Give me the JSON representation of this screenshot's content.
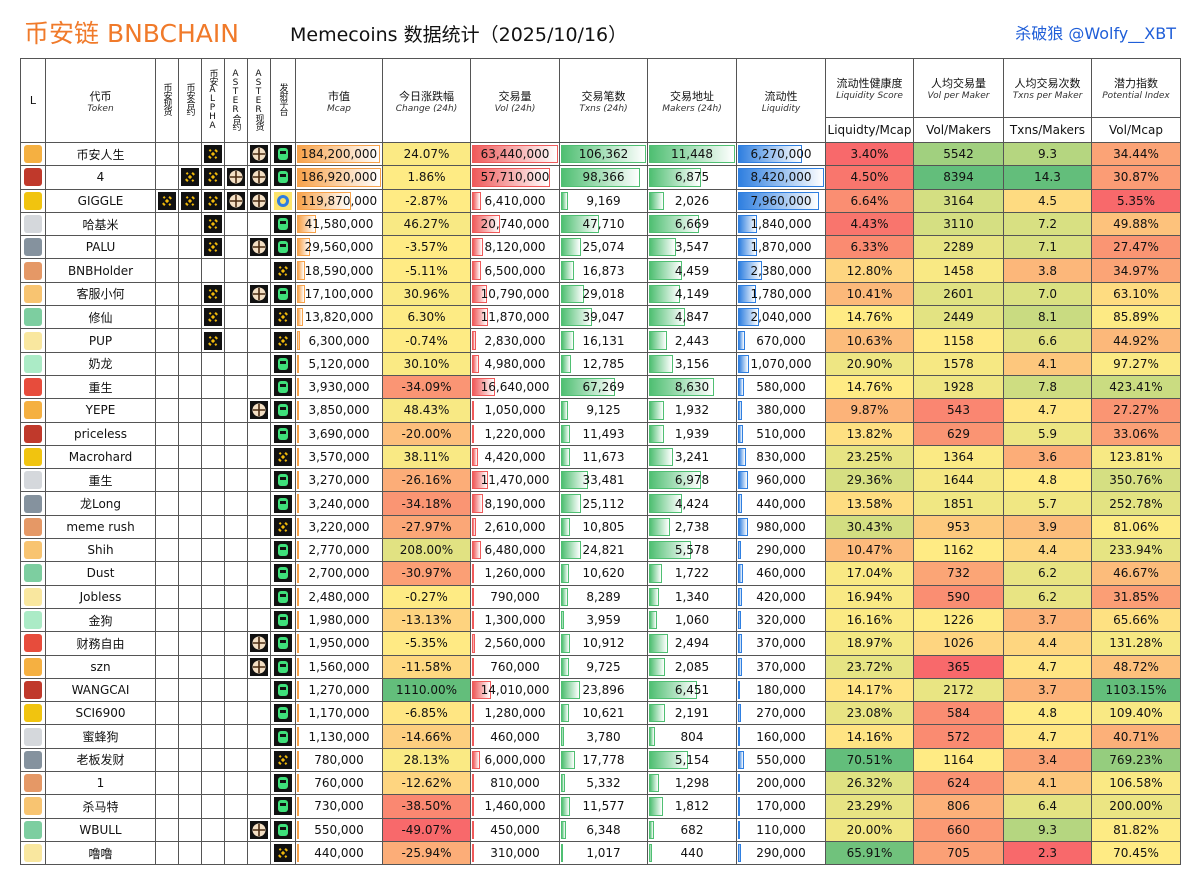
{
  "header": {
    "title_brand": "币安链 BNBCHAIN",
    "title_main": "Memecoins 数据统计（2025/10/16）",
    "author": "杀破狼 @Wolfy__XBT"
  },
  "table": {
    "columns": [
      {
        "cn": "L"
      },
      {
        "cn": "代币",
        "en": "Token"
      },
      {
        "cn": "币安现货"
      },
      {
        "cn": "币安合约"
      },
      {
        "cn": "币安ALPHA"
      },
      {
        "cn": "ASTER合约"
      },
      {
        "cn": "ASTER现货"
      },
      {
        "cn": "发射平台"
      },
      {
        "cn": "市值",
        "en": "Mcap"
      },
      {
        "cn": "今日涨跌幅",
        "en": "Change (24h)"
      },
      {
        "cn": "交易量",
        "en": "Vol (24h)"
      },
      {
        "cn": "交易笔数",
        "en": "Txns (24h)"
      },
      {
        "cn": "交易地址",
        "en": "Makers (24h)"
      },
      {
        "cn": "流动性",
        "en": "Liquidity"
      },
      {
        "cn": "流动性健康度",
        "en": "Liquidity Score",
        "formula": "Liquidty/Mcap"
      },
      {
        "cn": "人均交易量",
        "en": "Vol per Maker",
        "formula": "Vol/Makers"
      },
      {
        "cn": "人均交易次数",
        "en": "Txns per Maker",
        "formula": "Txns/Makers"
      },
      {
        "cn": "潜力指数",
        "en": "Potential Index",
        "formula": "Vol/Mcap"
      }
    ],
    "rows": [
      [
        "币安人生",
        "184,200,000",
        "24.07%",
        "63,440,000",
        "106,362",
        "11,448",
        "6,270,000",
        "3.40%",
        "5542",
        "9.3",
        "34.44%"
      ],
      [
        "4",
        "186,920,000",
        "1.86%",
        "57,710,000",
        "98,366",
        "6,875",
        "8,420,000",
        "4.50%",
        "8394",
        "14.3",
        "30.87%"
      ],
      [
        "GIGGLE",
        "119,870,000",
        "-2.87%",
        "6,410,000",
        "9,169",
        "2,026",
        "7,960,000",
        "6.64%",
        "3164",
        "4.5",
        "5.35%"
      ],
      [
        "哈基米",
        "41,580,000",
        "46.27%",
        "20,740,000",
        "47,710",
        "6,669",
        "1,840,000",
        "4.43%",
        "3110",
        "7.2",
        "49.88%"
      ],
      [
        "PALU",
        "29,560,000",
        "-3.57%",
        "8,120,000",
        "25,074",
        "3,547",
        "1,870,000",
        "6.33%",
        "2289",
        "7.1",
        "27.47%"
      ],
      [
        "BNBHolder",
        "18,590,000",
        "-5.11%",
        "6,500,000",
        "16,873",
        "4,459",
        "2,380,000",
        "12.80%",
        "1458",
        "3.8",
        "34.97%"
      ],
      [
        "客服小何",
        "17,100,000",
        "30.96%",
        "10,790,000",
        "29,018",
        "4,149",
        "1,780,000",
        "10.41%",
        "2601",
        "7.0",
        "63.10%"
      ],
      [
        "修仙",
        "13,820,000",
        "6.30%",
        "11,870,000",
        "39,047",
        "4,847",
        "2,040,000",
        "14.76%",
        "2449",
        "8.1",
        "85.89%"
      ],
      [
        "PUP",
        "6,300,000",
        "-0.74%",
        "2,830,000",
        "16,131",
        "2,443",
        "670,000",
        "10.63%",
        "1158",
        "6.6",
        "44.92%"
      ],
      [
        "奶龙",
        "5,120,000",
        "30.10%",
        "4,980,000",
        "12,785",
        "3,156",
        "1,070,000",
        "20.90%",
        "1578",
        "4.1",
        "97.27%"
      ],
      [
        "重生",
        "3,930,000",
        "-34.09%",
        "16,640,000",
        "67,269",
        "8,630",
        "580,000",
        "14.76%",
        "1928",
        "7.8",
        "423.41%"
      ],
      [
        "YEPE",
        "3,850,000",
        "48.43%",
        "1,050,000",
        "9,125",
        "1,932",
        "380,000",
        "9.87%",
        "543",
        "4.7",
        "27.27%"
      ],
      [
        "priceless",
        "3,690,000",
        "-20.00%",
        "1,220,000",
        "11,493",
        "1,939",
        "510,000",
        "13.82%",
        "629",
        "5.9",
        "33.06%"
      ],
      [
        "Macrohard",
        "3,570,000",
        "38.11%",
        "4,420,000",
        "11,673",
        "3,241",
        "830,000",
        "23.25%",
        "1364",
        "3.6",
        "123.81%"
      ],
      [
        "重生",
        "3,270,000",
        "-26.16%",
        "11,470,000",
        "33,481",
        "6,978",
        "960,000",
        "29.36%",
        "1644",
        "4.8",
        "350.76%"
      ],
      [
        "龙Long",
        "3,240,000",
        "-34.18%",
        "8,190,000",
        "25,112",
        "4,424",
        "440,000",
        "13.58%",
        "1851",
        "5.7",
        "252.78%"
      ],
      [
        "meme rush",
        "3,220,000",
        "-27.97%",
        "2,610,000",
        "10,805",
        "2,738",
        "980,000",
        "30.43%",
        "953",
        "3.9",
        "81.06%"
      ],
      [
        "Shih",
        "2,770,000",
        "208.00%",
        "6,480,000",
        "24,821",
        "5,578",
        "290,000",
        "10.47%",
        "1162",
        "4.4",
        "233.94%"
      ],
      [
        "Dust",
        "2,700,000",
        "-30.97%",
        "1,260,000",
        "10,620",
        "1,722",
        "460,000",
        "17.04%",
        "732",
        "6.2",
        "46.67%"
      ],
      [
        "Jobless",
        "2,480,000",
        "-0.27%",
        "790,000",
        "8,289",
        "1,340",
        "420,000",
        "16.94%",
        "590",
        "6.2",
        "31.85%"
      ],
      [
        "金狗",
        "1,980,000",
        "-13.13%",
        "1,300,000",
        "3,959",
        "1,060",
        "320,000",
        "16.16%",
        "1226",
        "3.7",
        "65.66%"
      ],
      [
        "财務自由",
        "1,950,000",
        "-5.35%",
        "2,560,000",
        "10,912",
        "2,494",
        "370,000",
        "18.97%",
        "1026",
        "4.4",
        "131.28%"
      ],
      [
        "szn",
        "1,560,000",
        "-11.58%",
        "760,000",
        "9,725",
        "2,085",
        "370,000",
        "23.72%",
        "365",
        "4.7",
        "48.72%"
      ],
      [
        "WANGCAI",
        "1,270,000",
        "1110.00%",
        "14,010,000",
        "23,896",
        "6,451",
        "180,000",
        "14.17%",
        "2172",
        "3.7",
        "1103.15%"
      ],
      [
        "SCI6900",
        "1,170,000",
        "-6.85%",
        "1,280,000",
        "10,621",
        "2,191",
        "270,000",
        "23.08%",
        "584",
        "4.8",
        "109.40%"
      ],
      [
        "蜜蜂狗",
        "1,130,000",
        "-14.66%",
        "460,000",
        "3,780",
        "804",
        "160,000",
        "14.16%",
        "572",
        "4.7",
        "40.71%"
      ],
      [
        "老板发财",
        "780,000",
        "28.13%",
        "6,000,000",
        "17,778",
        "5,154",
        "550,000",
        "70.51%",
        "1164",
        "3.4",
        "769.23%"
      ],
      [
        "1",
        "760,000",
        "-12.62%",
        "810,000",
        "5,332",
        "1,298",
        "200,000",
        "26.32%",
        "624",
        "4.1",
        "106.58%"
      ],
      [
        "杀马特",
        "730,000",
        "-38.50%",
        "1,460,000",
        "11,577",
        "1,812",
        "170,000",
        "23.29%",
        "806",
        "6.4",
        "200.00%"
      ],
      [
        "WBULL",
        "550,000",
        "-49.07%",
        "450,000",
        "6,348",
        "682",
        "110,000",
        "20.00%",
        "660",
        "9.3",
        "81.82%"
      ],
      [
        "噜噜",
        "440,000",
        "-25.94%",
        "310,000",
        "1,017",
        "440",
        "290,000",
        "65.91%",
        "705",
        "2.3",
        "70.45%"
      ]
    ]
  }
}
